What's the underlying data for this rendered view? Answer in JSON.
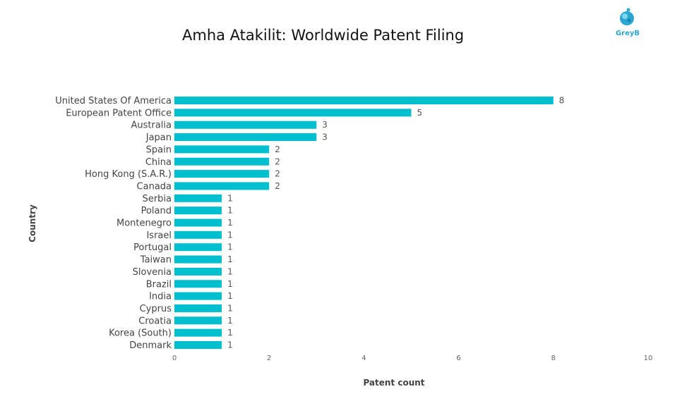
{
  "chart_data": {
    "type": "bar",
    "orientation": "horizontal",
    "title": "Amha Atakilit: Worldwide Patent Filing",
    "xlabel": "Patent count",
    "ylabel": "Country",
    "xlim": [
      0,
      10
    ],
    "xticks": [
      0,
      2,
      4,
      6,
      8,
      10
    ],
    "grid": false,
    "bar_color": "#00bfcf",
    "categories": [
      "United States Of America",
      "European Patent Office",
      "Australia",
      "Japan",
      "Spain",
      "China",
      "Hong Kong (S.A.R.)",
      "Canada",
      "Serbia",
      "Poland",
      "Montenegro",
      "Israel",
      "Portugal",
      "Taiwan",
      "Slovenia",
      "Brazil",
      "India",
      "Cyprus",
      "Croatia",
      "Korea (South)",
      "Denmark"
    ],
    "values": [
      8,
      5,
      3,
      3,
      2,
      2,
      2,
      2,
      1,
      1,
      1,
      1,
      1,
      1,
      1,
      1,
      1,
      1,
      1,
      1,
      1
    ]
  },
  "logo": {
    "text": "GreyB",
    "icon": "greyb-logo-icon",
    "color": "#2aa7d1"
  }
}
